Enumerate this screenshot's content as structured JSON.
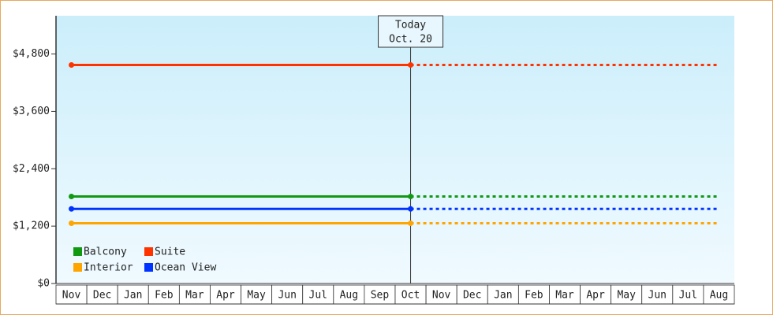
{
  "chart_data": {
    "type": "line",
    "categories": [
      "Nov",
      "Dec",
      "Jan",
      "Feb",
      "Mar",
      "Apr",
      "May",
      "Jun",
      "Jul",
      "Aug",
      "Sep",
      "Oct",
      "Nov",
      "Dec",
      "Jan",
      "Feb",
      "Mar",
      "Apr",
      "May",
      "Jun",
      "Jul",
      "Aug"
    ],
    "series": [
      {
        "name": "Balcony",
        "color": "#119911",
        "values": [
          1820,
          1820,
          1820,
          1820,
          1820,
          1820,
          1820,
          1820,
          1820,
          1820,
          1820,
          1820,
          1820,
          1820,
          1820,
          1820,
          1820,
          1820,
          1820,
          1820,
          1820,
          1820
        ]
      },
      {
        "name": "Suite",
        "color": "#ff3300",
        "values": [
          4570,
          4570,
          4570,
          4570,
          4570,
          4570,
          4570,
          4570,
          4570,
          4570,
          4570,
          4570,
          4570,
          4570,
          4570,
          4570,
          4570,
          4570,
          4570,
          4570,
          4570,
          4570
        ]
      },
      {
        "name": "Interior",
        "color": "#ffa500",
        "values": [
          1260,
          1260,
          1260,
          1260,
          1260,
          1260,
          1260,
          1260,
          1260,
          1260,
          1260,
          1260,
          1260,
          1260,
          1260,
          1260,
          1260,
          1260,
          1260,
          1260,
          1260,
          1260
        ]
      },
      {
        "name": "Ocean View",
        "color": "#0033ff",
        "values": [
          1560,
          1560,
          1560,
          1560,
          1560,
          1560,
          1560,
          1560,
          1560,
          1560,
          1560,
          1560,
          1560,
          1560,
          1560,
          1560,
          1560,
          1560,
          1560,
          1560,
          1560,
          1560
        ]
      }
    ],
    "today": {
      "label": "Today",
      "date": "Oct. 20"
    },
    "ylim": [
      0,
      5600
    ],
    "yticks": [
      {
        "value": 0,
        "label": "$0"
      },
      {
        "value": 1200,
        "label": "$1,200"
      },
      {
        "value": 2400,
        "label": "$2,400"
      },
      {
        "value": 3600,
        "label": "$3,600"
      },
      {
        "value": 4800,
        "label": "$4,800"
      }
    ]
  }
}
